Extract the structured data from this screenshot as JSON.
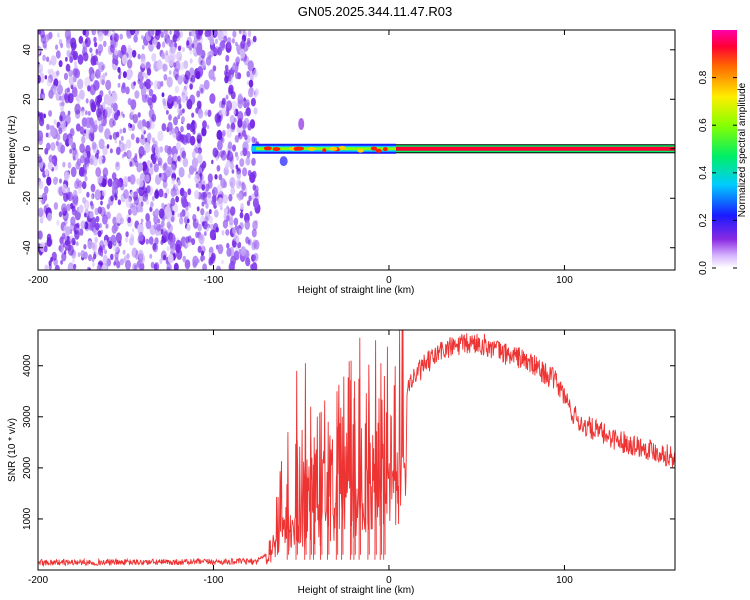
{
  "title": "GN05.2025.344.11.47.R03",
  "colors": {
    "snr_line": "#ee3333",
    "frame": "#000000",
    "noise": "#7a2be0"
  },
  "chart_data": [
    {
      "type": "heatmap",
      "name": "spectrogram",
      "xlabel": "Height of straight line (km)",
      "ylabel": "Frequency (Hz)",
      "xlim": [
        -200,
        163
      ],
      "ylim": [
        -49,
        48
      ],
      "xticks": [
        -200,
        -100,
        0,
        100
      ],
      "yticks": [
        -40,
        -20,
        0,
        20,
        40
      ],
      "noise_region_x": [
        -200,
        -77
      ],
      "signal_start_x": -78,
      "steady_start_x": 4,
      "center_frequency_hz": 0,
      "colorbar": {
        "label": "Normalized spectral amplitude",
        "range": [
          0,
          1
        ],
        "ticks": [
          "0.0",
          "0.2",
          "0.4",
          "0.6",
          "0.8"
        ],
        "tick_values": [
          0.0,
          0.2,
          0.4,
          0.6,
          0.8
        ]
      }
    },
    {
      "type": "line",
      "name": "snr",
      "xlabel": "Height of straight line (km)",
      "ylabel": "SNR (10 * v/v)",
      "xlim": [
        -200,
        163
      ],
      "ylim": [
        0,
        4700
      ],
      "xticks": [
        -200,
        -100,
        0,
        100
      ],
      "yticks": [
        1000,
        2000,
        3000,
        4000
      ],
      "baseline_level": 150,
      "profile": {
        "x": [
          -200,
          -150,
          -100,
          -75,
          -68,
          -62,
          -55,
          -47,
          -40,
          -30,
          -20,
          -10,
          0,
          10,
          20,
          30,
          40,
          50,
          55,
          65,
          75,
          85,
          95,
          100,
          105,
          110,
          120,
          130,
          140,
          150,
          163
        ],
        "y": [
          150,
          150,
          160,
          170,
          400,
          1300,
          1500,
          1600,
          1800,
          2100,
          2500,
          2800,
          3000,
          3600,
          4000,
          4300,
          4400,
          4450,
          4400,
          4250,
          4150,
          3950,
          3700,
          3400,
          3050,
          2850,
          2700,
          2550,
          2450,
          2350,
          2200
        ]
      },
      "spikes": {
        "x": [
          -58,
          -53,
          -48,
          -45,
          -43,
          -39,
          -35,
          -30,
          -27,
          -22,
          -20,
          -17,
          -12,
          -8,
          -5,
          -3
        ],
        "y": [
          2700,
          3900,
          4050,
          3200,
          2600,
          3100,
          2900,
          3500,
          3000,
          4100,
          3700,
          4550,
          3300,
          4500,
          4050,
          3800
        ]
      }
    }
  ]
}
